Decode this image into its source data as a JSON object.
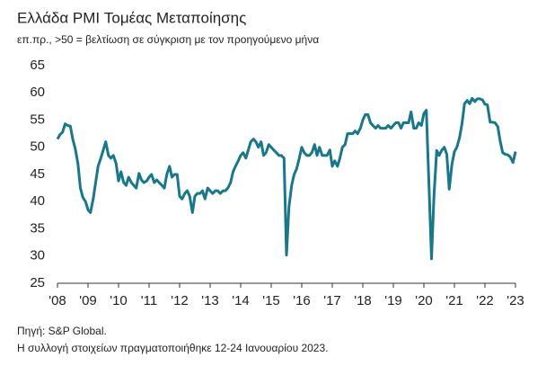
{
  "chart_data": {
    "type": "line",
    "title": "Ελλάδα PMI Τομέας Μεταποίησης",
    "subtitle": "επ.πρ., >50 = βελτίωση σε σύγκριση με τον προηγούμενο μήνα",
    "source": "Πηγή: S&P Global.",
    "note": "Η συλλογή στοιχείων πραγματοποιήθηκε 12-24 Ιανουαρίου 2023.",
    "color": "#16788c",
    "x": [
      2008,
      2008.08,
      2008.17,
      2008.25,
      2008.33,
      2008.42,
      2008.5,
      2008.58,
      2008.67,
      2008.75,
      2008.83,
      2008.92,
      2009,
      2009.08,
      2009.17,
      2009.25,
      2009.33,
      2009.42,
      2009.5,
      2009.58,
      2009.67,
      2009.75,
      2009.83,
      2009.92,
      2010,
      2010.08,
      2010.17,
      2010.25,
      2010.33,
      2010.42,
      2010.5,
      2010.58,
      2010.67,
      2010.75,
      2010.83,
      2010.92,
      2011,
      2011.08,
      2011.17,
      2011.25,
      2011.33,
      2011.42,
      2011.5,
      2011.58,
      2011.67,
      2011.75,
      2011.83,
      2011.92,
      2012,
      2012.08,
      2012.17,
      2012.25,
      2012.33,
      2012.42,
      2012.5,
      2012.58,
      2012.67,
      2012.75,
      2012.83,
      2012.92,
      2013,
      2013.08,
      2013.17,
      2013.25,
      2013.33,
      2013.42,
      2013.5,
      2013.58,
      2013.67,
      2013.75,
      2013.83,
      2013.92,
      2014,
      2014.08,
      2014.17,
      2014.25,
      2014.33,
      2014.42,
      2014.5,
      2014.58,
      2014.67,
      2014.75,
      2014.83,
      2014.92,
      2015,
      2015.08,
      2015.17,
      2015.25,
      2015.33,
      2015.42,
      2015.5,
      2015.58,
      2015.67,
      2015.75,
      2015.83,
      2015.92,
      2016,
      2016.08,
      2016.17,
      2016.25,
      2016.33,
      2016.42,
      2016.5,
      2016.58,
      2016.67,
      2016.75,
      2016.83,
      2016.92,
      2017,
      2017.08,
      2017.17,
      2017.25,
      2017.33,
      2017.42,
      2017.5,
      2017.58,
      2017.67,
      2017.75,
      2017.83,
      2017.92,
      2018,
      2018.08,
      2018.17,
      2018.25,
      2018.33,
      2018.42,
      2018.5,
      2018.58,
      2018.67,
      2018.75,
      2018.83,
      2018.92,
      2019,
      2019.08,
      2019.17,
      2019.25,
      2019.33,
      2019.42,
      2019.5,
      2019.58,
      2019.67,
      2019.75,
      2019.83,
      2019.92,
      2020,
      2020.08,
      2020.17,
      2020.25,
      2020.33,
      2020.42,
      2020.5,
      2020.58,
      2020.67,
      2020.75,
      2020.83,
      2020.92,
      2021,
      2021.08,
      2021.17,
      2021.25,
      2021.33,
      2021.42,
      2021.5,
      2021.58,
      2021.67,
      2021.75,
      2021.83,
      2021.92,
      2022,
      2022.08,
      2022.17,
      2022.25,
      2022.33,
      2022.42,
      2022.5,
      2022.58,
      2022.67,
      2022.75,
      2022.83,
      2022.92,
      2023
    ],
    "values": [
      51.5,
      52.3,
      52.8,
      54.3,
      54.0,
      53.9,
      51.5,
      49.8,
      47.0,
      42.5,
      40.8,
      40.0,
      38.5,
      38.0,
      40.5,
      43.5,
      46.5,
      48.0,
      49.5,
      51.0,
      48.5,
      48.0,
      48.5,
      47.0,
      43.8,
      45.5,
      43.5,
      43.0,
      44.5,
      43.5,
      43.0,
      42.5,
      45.2,
      44.0,
      43.5,
      43.8,
      44.5,
      45.0,
      43.5,
      44.0,
      43.5,
      43.0,
      42.5,
      45.0,
      46.5,
      44.5,
      45.0,
      45.0,
      41.0,
      40.5,
      41.5,
      42.0,
      41.0,
      38.0,
      41.0,
      41.5,
      41.5,
      42.0,
      40.5,
      42.5,
      42.0,
      41.5,
      42.0,
      42.0,
      41.5,
      42.0,
      42.0,
      42.5,
      43.5,
      45.5,
      46.5,
      47.5,
      48.5,
      49.0,
      48.0,
      49.5,
      51.0,
      51.5,
      51.0,
      50.0,
      51.0,
      48.5,
      49.0,
      50.5,
      50.0,
      49.5,
      49.0,
      48.5,
      48.5,
      48.0,
      30.2,
      39.0,
      43.0,
      45.0,
      46.0,
      48.0,
      50.0,
      49.0,
      48.5,
      48.5,
      49.0,
      50.5,
      48.5,
      50.0,
      48.5,
      48.5,
      48.5,
      49.5,
      46.5,
      47.5,
      46.5,
      48.0,
      50.0,
      50.5,
      52.5,
      52.5,
      52.5,
      53.0,
      52.5,
      53.5,
      55.0,
      56.0,
      56.0,
      54.5,
      54.0,
      53.5,
      54.0,
      53.5,
      53.5,
      53.5,
      54.0,
      53.5,
      54.0,
      54.5,
      54.5,
      53.5,
      54.5,
      54.5,
      54.5,
      56.5,
      53.5,
      53.5,
      54.5,
      54.0,
      56.2,
      56.8,
      42.5,
      29.5,
      41.0,
      49.4,
      48.5,
      49.4,
      50.0,
      48.7,
      42.3,
      46.9,
      49.2,
      50.0,
      51.8,
      54.4,
      58.0,
      58.6,
      58.0,
      59.0,
      58.4,
      58.9,
      58.9,
      58.7,
      57.9,
      57.8,
      54.6,
      54.6,
      54.5,
      53.8,
      51.1,
      49.0,
      48.7,
      48.6,
      48.2,
      47.2,
      49.2
    ],
    "xlim": [
      2008,
      2023
    ],
    "xticks": [
      {
        "value": 2008,
        "label": "'08"
      },
      {
        "value": 2009,
        "label": "'09"
      },
      {
        "value": 2010,
        "label": "'10"
      },
      {
        "value": 2011,
        "label": "'11"
      },
      {
        "value": 2012,
        "label": "'12"
      },
      {
        "value": 2013,
        "label": "'13"
      },
      {
        "value": 2014,
        "label": "'14"
      },
      {
        "value": 2015,
        "label": "'15"
      },
      {
        "value": 2016,
        "label": "'16"
      },
      {
        "value": 2017,
        "label": "'17"
      },
      {
        "value": 2018,
        "label": "'18"
      },
      {
        "value": 2019,
        "label": "'19"
      },
      {
        "value": 2020,
        "label": "'20"
      },
      {
        "value": 2021,
        "label": "'21"
      },
      {
        "value": 2022,
        "label": "'22"
      },
      {
        "value": 2023,
        "label": "'23"
      }
    ],
    "ylim": [
      25,
      65
    ],
    "yticks": [
      25,
      30,
      35,
      40,
      45,
      50,
      55,
      60,
      65
    ],
    "grid": false
  }
}
